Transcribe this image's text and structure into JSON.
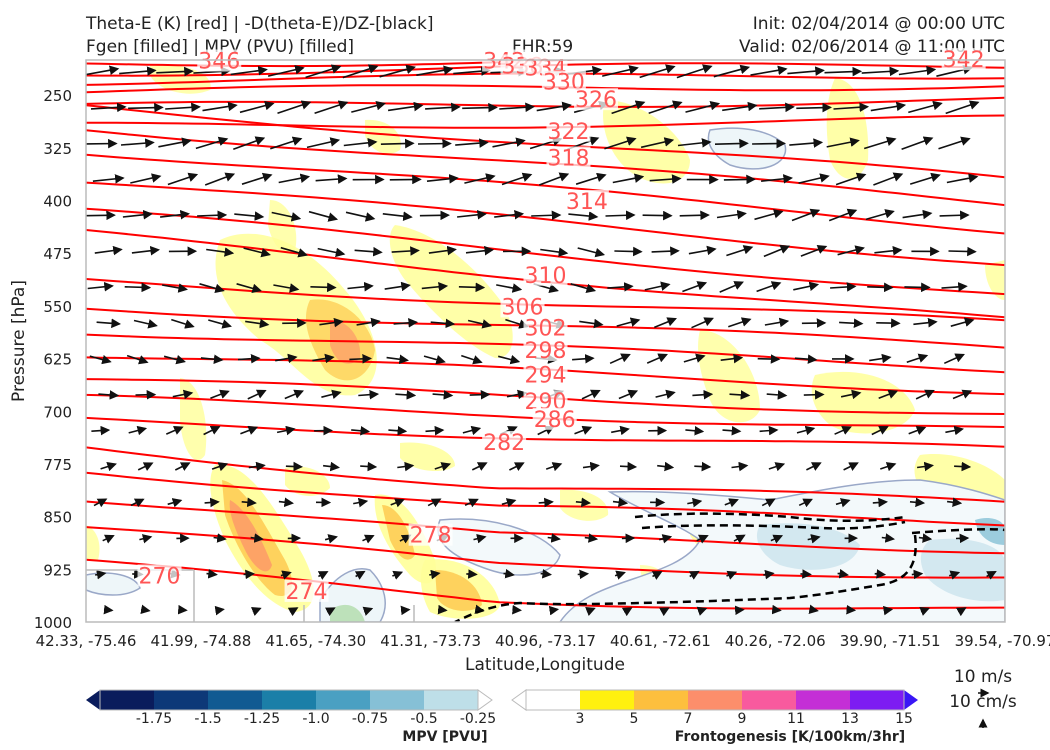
{
  "header": {
    "title_left_1": "Theta-E (K) [red] | -D(theta-E)/DZ-[black]",
    "title_left_2": "Fgen [filled] | MPV (PVU) [filled]",
    "fhr": "FHR:59",
    "init": "Init: 02/04/2014 @ 00:00 UTC",
    "valid": "Valid: 02/06/2014 @ 11:00 UTC"
  },
  "chart_data": {
    "type": "cross-section",
    "xlabel": "Latitude,Longitude",
    "ylabel": "Pressure [hPa]",
    "ylim": [
      1000,
      200
    ],
    "y_ticks": [
      250,
      325,
      400,
      475,
      550,
      625,
      700,
      775,
      850,
      925,
      1000
    ],
    "x_ticks": [
      "42.33, -75.46",
      "41.99, -74.88",
      "41.65, -74.30",
      "41.31, -73.73",
      "40.96, -73.17",
      "40.61, -72.61",
      "40.26, -72.06",
      "39.90, -71.51",
      "39.54, -70.97"
    ],
    "theta_e_labels": [
      {
        "value": "346",
        "x": 0.145,
        "p": 205
      },
      {
        "value": "342",
        "x": 0.455,
        "p": 205
      },
      {
        "value": "338",
        "x": 0.475,
        "p": 212
      },
      {
        "value": "334",
        "x": 0.5,
        "p": 215
      },
      {
        "value": "342",
        "x": 0.955,
        "p": 203
      },
      {
        "value": "330",
        "x": 0.52,
        "p": 235
      },
      {
        "value": "326",
        "x": 0.555,
        "p": 260
      },
      {
        "value": "322",
        "x": 0.525,
        "p": 305
      },
      {
        "value": "318",
        "x": 0.525,
        "p": 343
      },
      {
        "value": "314",
        "x": 0.545,
        "p": 405
      },
      {
        "value": "310",
        "x": 0.5,
        "p": 510
      },
      {
        "value": "306",
        "x": 0.475,
        "p": 555
      },
      {
        "value": "302",
        "x": 0.5,
        "p": 585
      },
      {
        "value": "298",
        "x": 0.5,
        "p": 617
      },
      {
        "value": "294",
        "x": 0.5,
        "p": 652
      },
      {
        "value": "290",
        "x": 0.5,
        "p": 690
      },
      {
        "value": "286",
        "x": 0.51,
        "p": 715
      },
      {
        "value": "282",
        "x": 0.455,
        "p": 748
      },
      {
        "value": "278",
        "x": 0.375,
        "p": 880
      },
      {
        "value": "274",
        "x": 0.24,
        "p": 960
      },
      {
        "value": "270",
        "x": 0.08,
        "p": 938
      }
    ],
    "mpv_colorbar": {
      "title": "MPV [PVU]",
      "ticks": [
        "-1.75",
        "-1.5",
        "-1.25",
        "-1.0",
        "-0.75",
        "-0.5",
        "-0.25"
      ],
      "colors": [
        "#0a1c5c",
        "#0d3878",
        "#115a92",
        "#1b7fa8",
        "#4aa0c2",
        "#86c0d6",
        "#bedfe8",
        "#ffffff"
      ]
    },
    "fgen_colorbar": {
      "title": "Frontogenesis [K/100km/3hr]",
      "ticks": [
        "3",
        "5",
        "7",
        "9",
        "11",
        "13",
        "15"
      ],
      "colors": [
        "#ffffff",
        "#fff10f",
        "#fdbf3e",
        "#fc8e6b",
        "#f85a9e",
        "#c42fd6",
        "#7d1cf2",
        "#3a16f6"
      ]
    },
    "wind_reference": {
      "label1": "10 m/s",
      "label2": "10 cm/s"
    }
  },
  "colors": {
    "theta_e": "#ff0000",
    "label": "#ff5555",
    "arrow": "#111111"
  }
}
